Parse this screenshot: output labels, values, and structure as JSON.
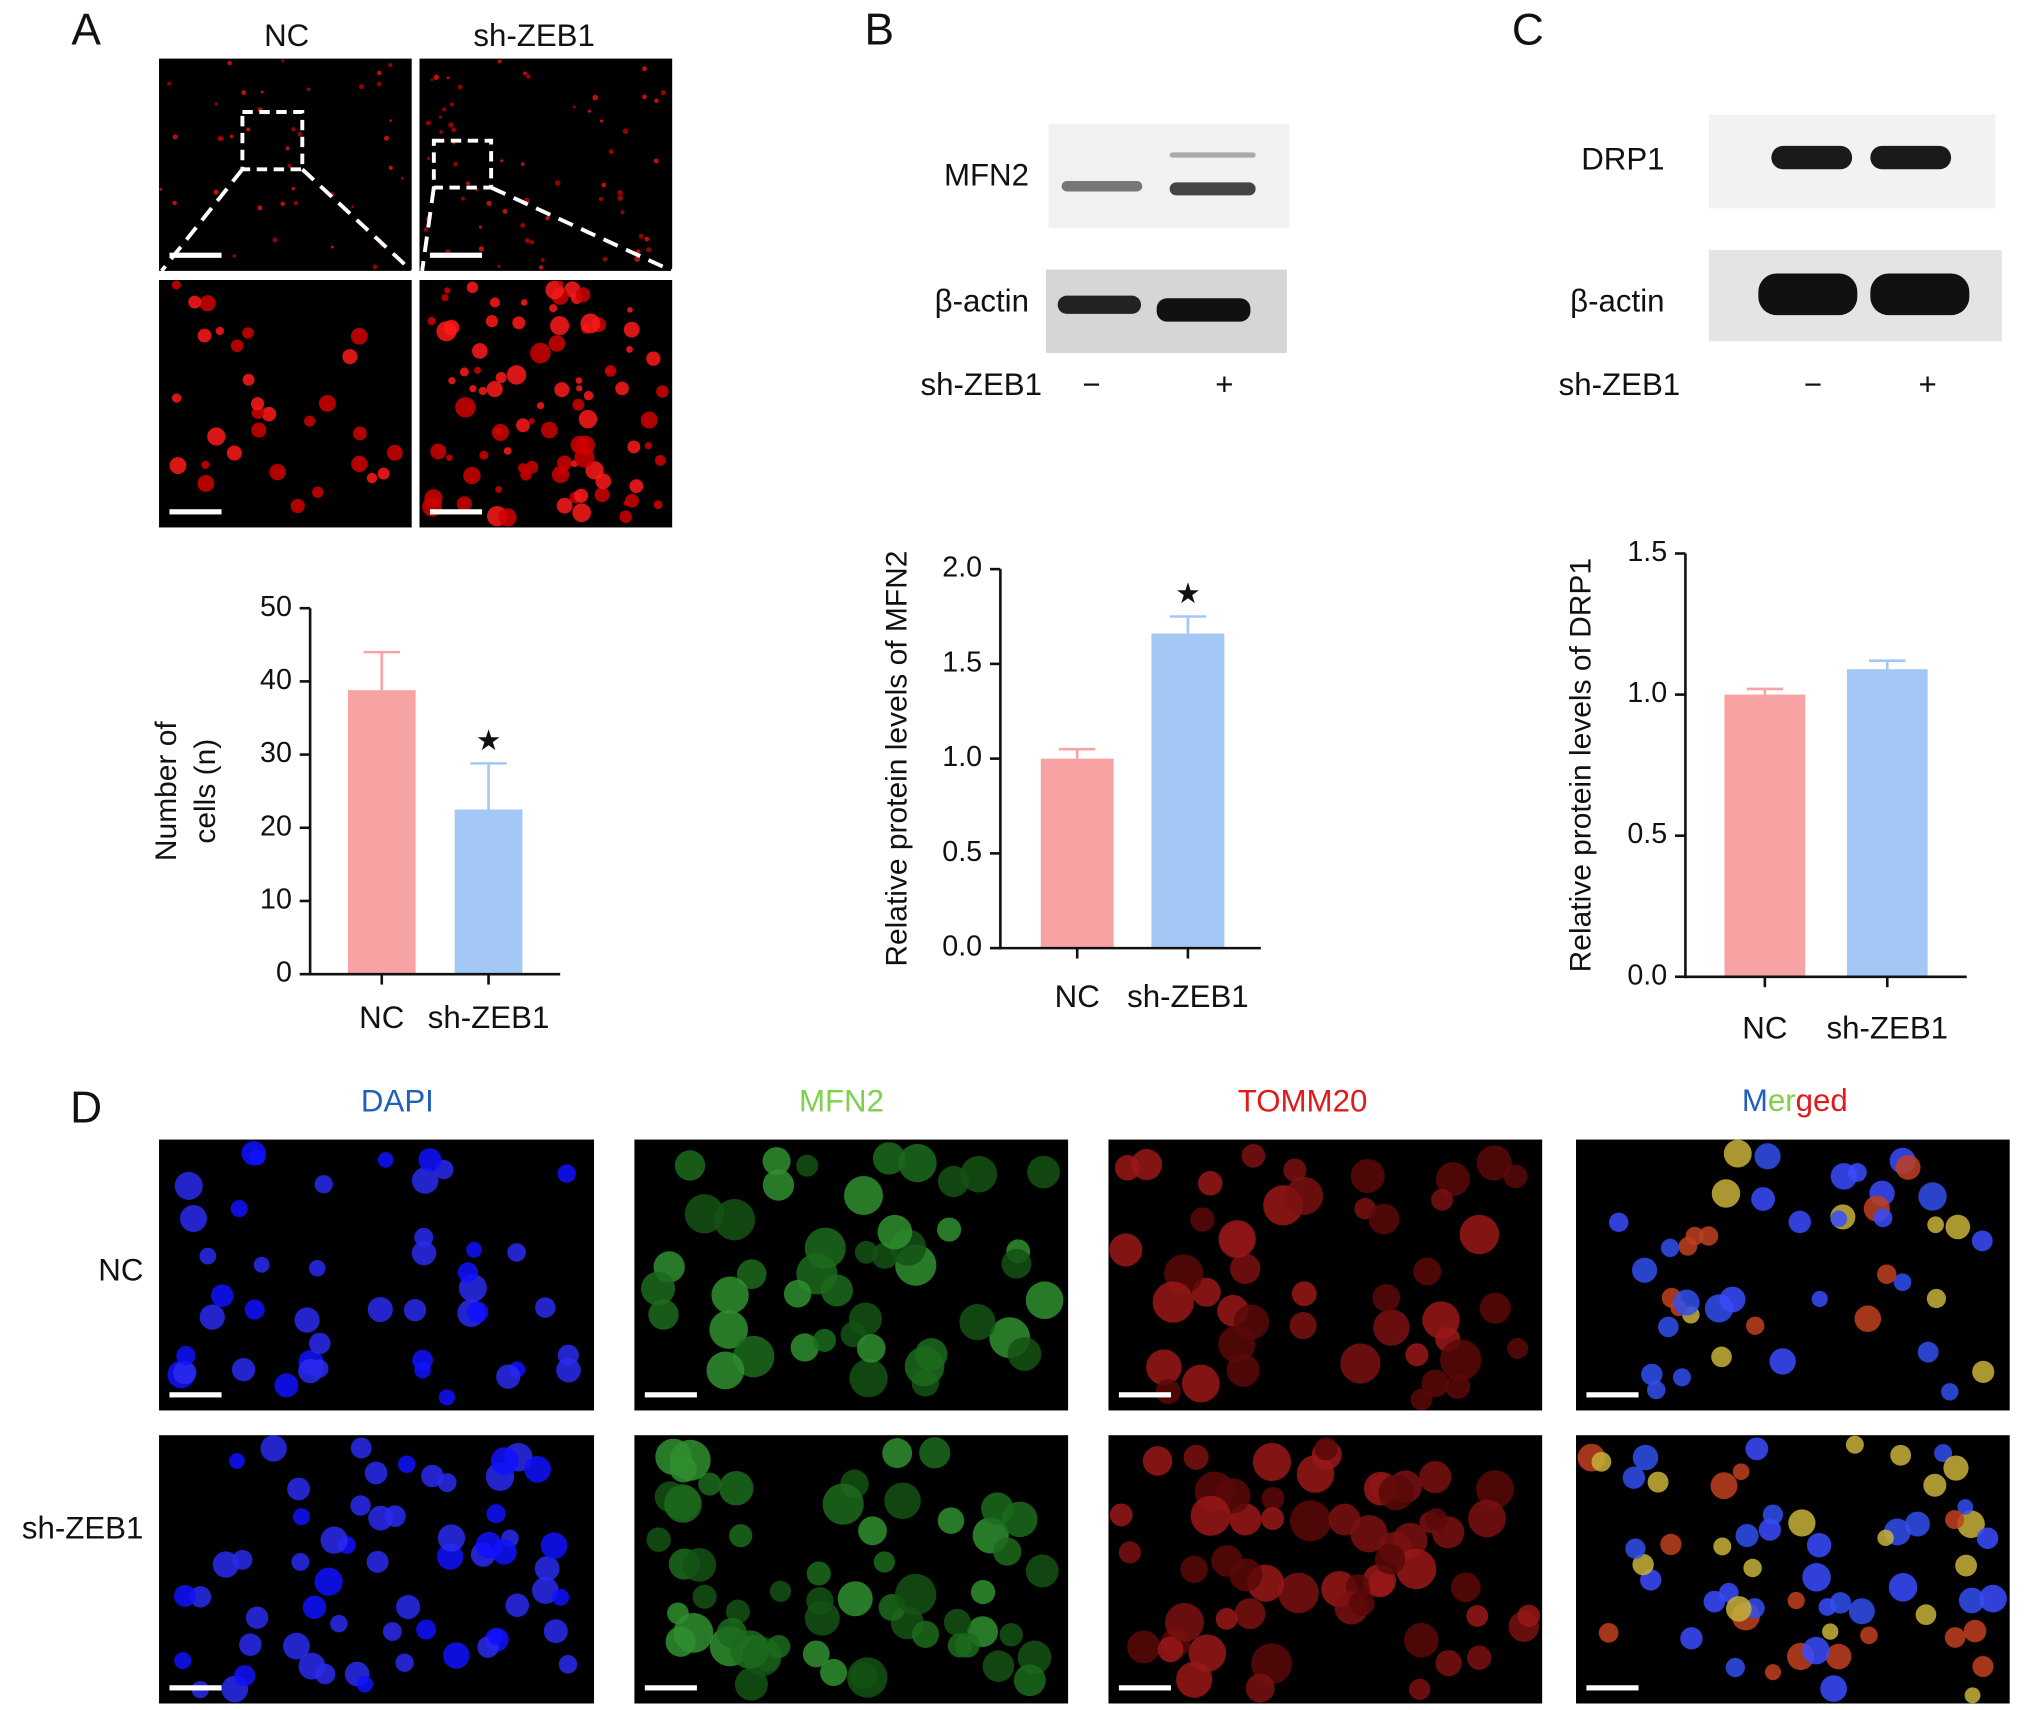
{
  "panel_labels": [
    "A",
    "B",
    "C",
    "D"
  ],
  "panel_a": {
    "image_titles": [
      "NC",
      "sh-ZEB1"
    ]
  },
  "panel_b": {
    "blot_labels": [
      "MFN2",
      "β-actin"
    ],
    "treatment": "sh-ZEB1",
    "lanes": [
      "−",
      "+"
    ]
  },
  "panel_c": {
    "blot_labels": [
      "DRP1",
      "β-actin"
    ],
    "treatment": "sh-ZEB1",
    "lanes": [
      "−",
      "+"
    ]
  },
  "panel_d": {
    "columns": [
      "DAPI",
      "MFN2",
      "TOMM20"
    ],
    "merged_parts": [
      "M",
      "er",
      "ged"
    ],
    "rows": [
      "NC",
      "sh-ZEB1"
    ]
  },
  "chart_data": [
    {
      "type": "bar",
      "y_label": [
        "Number of",
        "cells (n)"
      ],
      "categories": [
        "NC",
        "sh-ZEB1"
      ],
      "values": [
        38.8,
        22.5
      ],
      "errors": [
        5.2,
        6.3
      ],
      "colors": [
        "#f8a3a3",
        "#a3c8f5"
      ],
      "significance": [
        null,
        "★"
      ],
      "ylim": [
        0,
        50
      ],
      "yticks": [
        0,
        10,
        20,
        30,
        40,
        50
      ]
    },
    {
      "type": "bar",
      "y_label": "Relative protein levels of MFN2",
      "categories": [
        "NC",
        "sh-ZEB1"
      ],
      "values": [
        1.0,
        1.66
      ],
      "errors": [
        0.05,
        0.09
      ],
      "colors": [
        "#f8a3a3",
        "#a3c8f5"
      ],
      "significance": [
        null,
        "★"
      ],
      "ylim": [
        0,
        2
      ],
      "yticks": [
        {
          "value": 0,
          "label": "0.0"
        },
        {
          "value": 0.5,
          "label": "0.5"
        },
        {
          "value": 1,
          "label": "1.0"
        },
        {
          "value": 1.5,
          "label": "1.5"
        },
        {
          "value": 2,
          "label": "2.0"
        }
      ]
    },
    {
      "type": "bar",
      "y_label": "Relative protein levels of DRP1",
      "categories": [
        "NC",
        "sh-ZEB1"
      ],
      "values": [
        1.0,
        1.09
      ],
      "errors": [
        0.02,
        0.03
      ],
      "colors": [
        "#f8a3a3",
        "#a3c8f5"
      ],
      "ylim": [
        0,
        1.5
      ],
      "yticks": [
        {
          "value": 0,
          "label": "0.0"
        },
        {
          "value": 0.5,
          "label": "0.5"
        },
        {
          "value": 1,
          "label": "1.0"
        },
        {
          "value": 1.5,
          "label": "1.5"
        }
      ]
    }
  ]
}
